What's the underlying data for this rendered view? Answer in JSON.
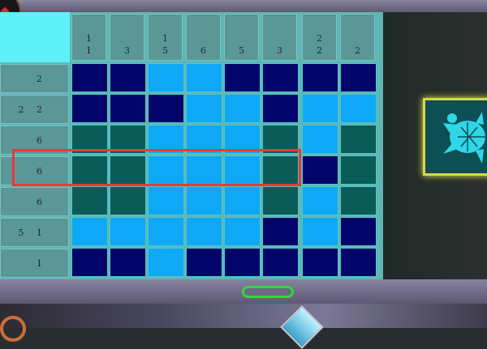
{
  "puzzle": {
    "column_clues": [
      [
        "1",
        "1"
      ],
      [
        "3"
      ],
      [
        "1",
        "5"
      ],
      [
        "6"
      ],
      [
        "5"
      ],
      [
        "3"
      ],
      [
        "2",
        "2"
      ],
      [
        "2"
      ]
    ],
    "row_clues": [
      "2",
      "2 2",
      "6",
      "6",
      "6",
      "5 1",
      "1"
    ],
    "grid": [
      [
        "N",
        "N",
        "L",
        "L",
        "N",
        "N",
        "N",
        "N"
      ],
      [
        "N",
        "N",
        "N",
        "L",
        "L",
        "N",
        "L",
        "L"
      ],
      [
        "T",
        "T",
        "L",
        "L",
        "L",
        "T",
        "L",
        "T"
      ],
      [
        "T",
        "T",
        "L",
        "L",
        "L",
        "T",
        "N",
        "T"
      ],
      [
        "T",
        "T",
        "L",
        "L",
        "L",
        "T",
        "L",
        "T"
      ],
      [
        "L",
        "L",
        "L",
        "L",
        "L",
        "N",
        "L",
        "N"
      ],
      [
        "N",
        "N",
        "L",
        "N",
        "N",
        "N",
        "N",
        "N"
      ]
    ],
    "highlighted_row": 4
  },
  "colors": {
    "N": "#03046a",
    "L": "#0fa8f6",
    "T": "#0b5b58",
    "highlight": "#e8393c",
    "pill": "#2fd83a",
    "turtle": "#2fd6e6"
  },
  "icons": {
    "target_image": "sea-turtle-icon",
    "medal": "medal-icon",
    "gem": "gem-icon"
  }
}
